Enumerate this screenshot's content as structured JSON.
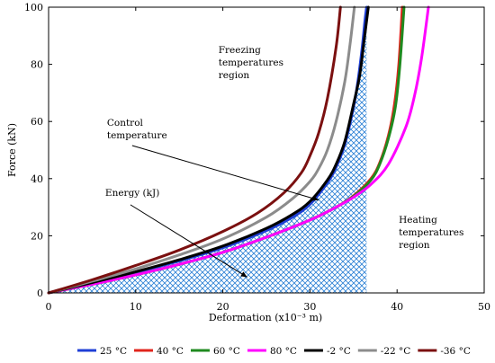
{
  "chart_data": {
    "type": "line",
    "xlabel": "Deformation (x10⁻³ m)",
    "ylabel": "Force (kN)",
    "xlim": [
      0,
      50
    ],
    "ylim": [
      0,
      100
    ],
    "xticks": [
      0,
      10,
      20,
      30,
      40,
      50
    ],
    "yticks": [
      0,
      20,
      40,
      60,
      80,
      100
    ],
    "grid": false,
    "legend_position": "bottom",
    "series": [
      {
        "name": "25 °C",
        "color": "#1f3fd6",
        "x": [
          0,
          5,
          10,
          15,
          20,
          25,
          28,
          30,
          32,
          33,
          34,
          35,
          35.5,
          36,
          36.3,
          36.5
        ],
        "y": [
          0,
          3.5,
          7.2,
          11.2,
          15.8,
          21.8,
          26.5,
          31,
          38.5,
          44,
          52,
          65,
          74,
          86,
          95,
          100
        ]
      },
      {
        "name": "40 °C",
        "color": "#e0241c",
        "x": [
          0,
          5,
          10,
          15,
          20,
          25,
          30,
          33,
          35,
          37,
          38,
          39,
          39.7,
          40.2,
          40.6
        ],
        "y": [
          0,
          3,
          6.3,
          10,
          14.2,
          19.5,
          25.5,
          30,
          34,
          40,
          45.5,
          55,
          66,
          80,
          100
        ]
      },
      {
        "name": "60 °C",
        "color": "#1f8a1f",
        "x": [
          0,
          5,
          10,
          15,
          20,
          25,
          30,
          33,
          35,
          37,
          38,
          39,
          39.8,
          40.3,
          40.8
        ],
        "y": [
          0,
          3,
          6.3,
          10,
          14.2,
          19.5,
          25.5,
          30,
          33.8,
          39.5,
          45,
          54,
          65,
          79,
          100
        ]
      },
      {
        "name": "80 °C",
        "color": "#ff00ff",
        "x": [
          0,
          5,
          10,
          15,
          20,
          25,
          30,
          33,
          35,
          37,
          39,
          41,
          42,
          42.8,
          43.6
        ],
        "y": [
          0,
          3,
          6.3,
          10,
          14.2,
          19.5,
          25.5,
          30,
          33.5,
          38,
          45,
          58,
          69,
          82,
          100
        ]
      },
      {
        "name": "-2 °C",
        "color": "#000000",
        "x": [
          0,
          5,
          10,
          15,
          20,
          25,
          28,
          30,
          32,
          33,
          34,
          35,
          35.7,
          36.2,
          36.7
        ],
        "y": [
          0,
          3.6,
          7.4,
          11.6,
          16.4,
          22.6,
          27.5,
          32,
          39.5,
          45,
          53,
          66,
          76,
          88,
          100
        ]
      },
      {
        "name": "-22 °C",
        "color": "#8c8c8c",
        "x": [
          0,
          5,
          10,
          15,
          20,
          25,
          28,
          30,
          31,
          32,
          33,
          34,
          34.6,
          35.1
        ],
        "y": [
          0,
          4.1,
          8.4,
          13.3,
          18.9,
          26.5,
          33,
          39,
          43.5,
          50,
          60,
          74,
          87,
          100
        ]
      },
      {
        "name": "-36 °C",
        "color": "#7b1010",
        "x": [
          0,
          5,
          10,
          15,
          20,
          24,
          27,
          29,
          30,
          31,
          32,
          33,
          33.5
        ],
        "y": [
          0,
          4.6,
          9.6,
          15,
          21.5,
          28,
          35,
          42,
          48,
          56,
          68,
          86,
          100
        ]
      }
    ],
    "energy_area": {
      "under_series": "25 °C",
      "x_from": 0,
      "x_to": 36.5,
      "pattern": "blue crosshatch"
    },
    "annotations": [
      {
        "text": "Freezing temperatures region",
        "lines": [
          "Freezing",
          "temperatures",
          "region"
        ],
        "at": [
          19.5,
          84
        ]
      },
      {
        "text": "Control temperature",
        "lines": [
          "Control",
          "temperature"
        ],
        "at": [
          6.7,
          58.5
        ],
        "arrow_to": [
          31,
          32.5
        ]
      },
      {
        "text": "Energy (kJ)",
        "lines": [
          "Energy (kJ)"
        ],
        "at": [
          6.5,
          34
        ],
        "arrow_to": [
          22.8,
          5.5
        ]
      },
      {
        "text": "Heating temperatures region",
        "lines": [
          "Heating",
          "temperatures",
          "region"
        ],
        "at": [
          40.2,
          24.5
        ]
      }
    ]
  }
}
